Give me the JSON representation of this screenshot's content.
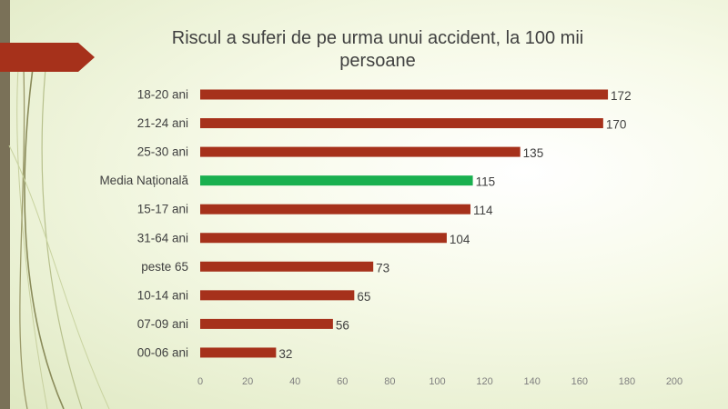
{
  "colors": {
    "bar": "#a6311b",
    "highlight": "#19b04f",
    "accent_left": "#7a7158",
    "arrow": "#a6311b"
  },
  "chart_data": {
    "type": "bar",
    "orientation": "horizontal",
    "title": "Riscul a suferi de pe urma unui accident, la 100 mii persoane",
    "categories": [
      "18-20 ani",
      "21-24 ani",
      "25-30 ani",
      "Media Națională",
      "15-17 ani",
      "31-64 ani",
      "peste 65",
      "10-14 ani",
      "07-09 ani",
      "00-06 ani"
    ],
    "values": [
      172,
      170,
      135,
      115,
      114,
      104,
      73,
      65,
      56,
      32
    ],
    "highlight_category": "Media Națională",
    "xlim": [
      0,
      200
    ],
    "xticks": [
      0,
      20,
      40,
      60,
      80,
      100,
      120,
      140,
      160,
      180,
      200
    ],
    "data_labels": true,
    "grid": false,
    "legend": "none"
  }
}
